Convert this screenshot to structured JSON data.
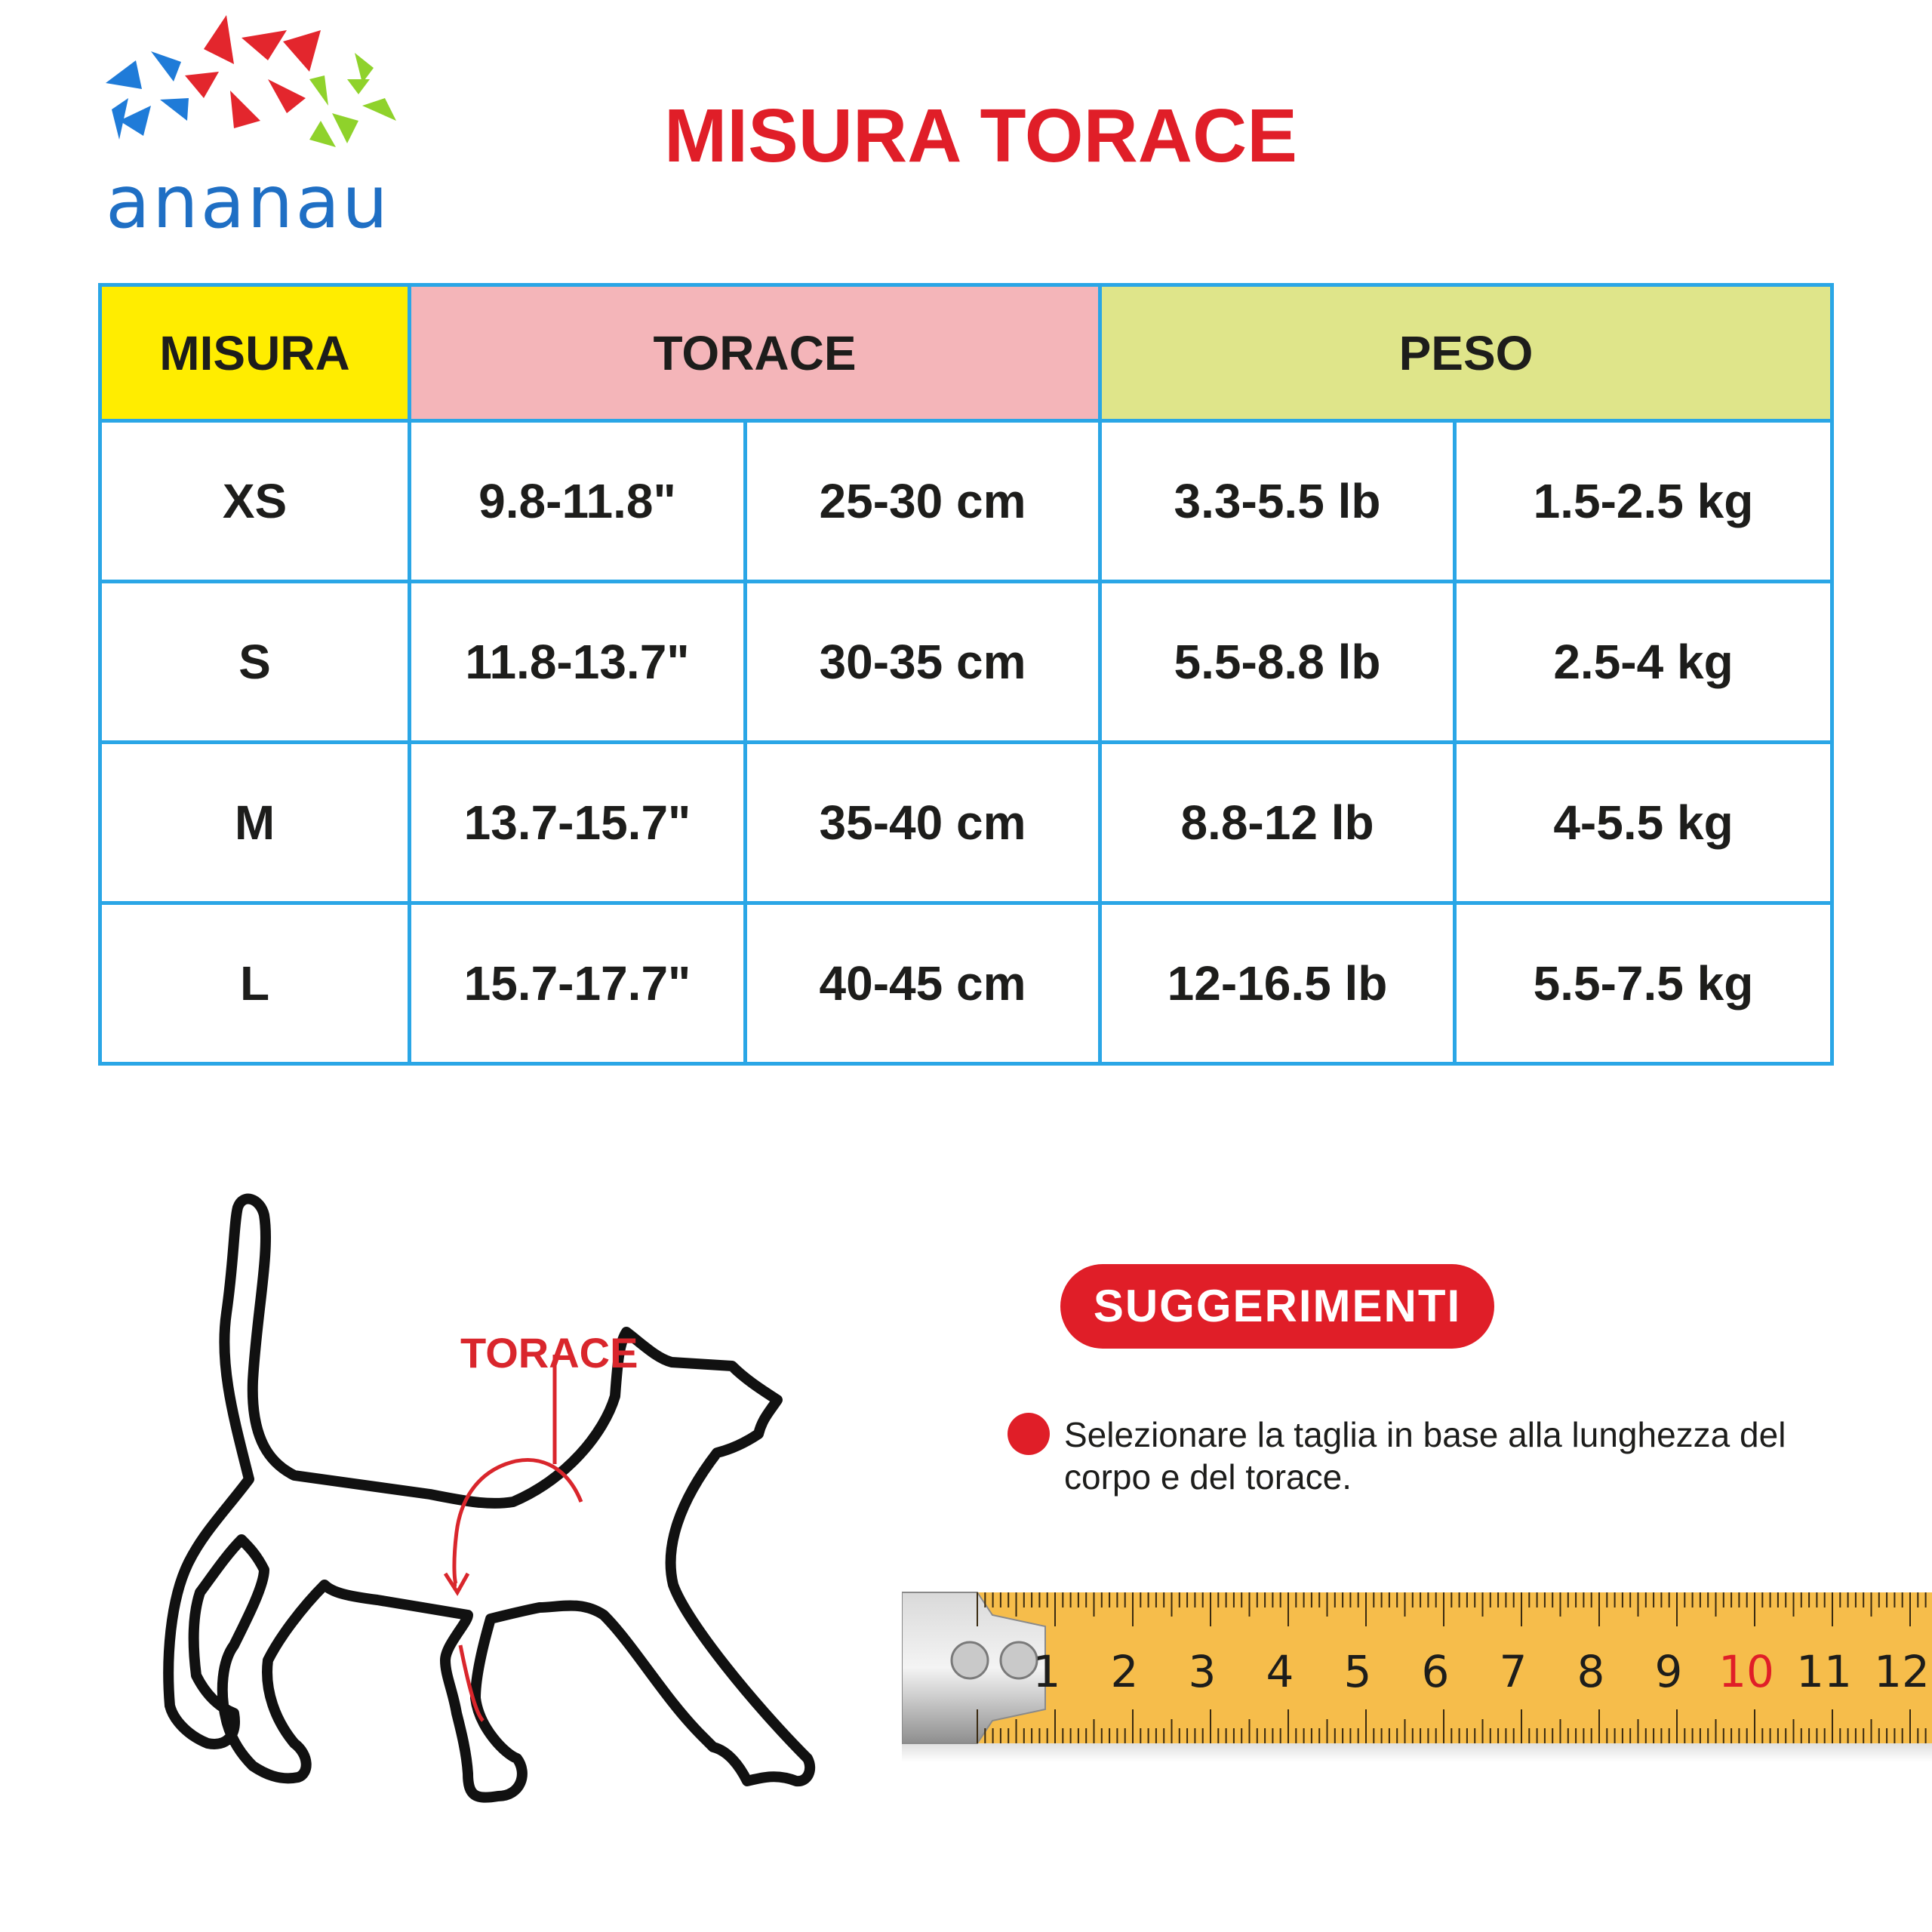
{
  "brand": {
    "name": "ananau",
    "star_colors": [
      "#1f7bd8",
      "#e3262d",
      "#8fd22b"
    ]
  },
  "title": "MISURA TORACE",
  "size_table": {
    "headers": {
      "size": "MISURA",
      "chest": "TORACE",
      "weight": "PESO"
    },
    "rows": [
      {
        "size": "XS",
        "chest_in": "9.8-11.8\"",
        "chest_cm": "25-30 cm",
        "weight_lb": "3.3-5.5 lb",
        "weight_kg": "1.5-2.5 kg"
      },
      {
        "size": "S",
        "chest_in": "11.8-13.7\"",
        "chest_cm": "30-35 cm",
        "weight_lb": "5.5-8.8 lb",
        "weight_kg": "2.5-4 kg"
      },
      {
        "size": "M",
        "chest_in": "13.7-15.7\"",
        "chest_cm": "35-40 cm",
        "weight_lb": "8.8-12 lb",
        "weight_kg": "4-5.5 kg"
      },
      {
        "size": "L",
        "chest_in": "15.7-17.7\"",
        "chest_cm": "40-45 cm",
        "weight_lb": "12-16.5 lb",
        "weight_kg": "5.5-7.5 kg"
      }
    ],
    "colors": {
      "border": "#2aa6e6",
      "size_header": "#ffed00",
      "chest_header": "#f4b5b9",
      "weight_header": "#dfe58a"
    }
  },
  "illustration": {
    "label": "TORACE",
    "icon": "cat-outline-icon"
  },
  "tips": {
    "heading": "SUGGERIMENTI",
    "items": [
      "Selezionare la taglia in base alla lunghezza del corpo e del torace."
    ]
  },
  "tape_measure": {
    "numbers": [
      "1",
      "2",
      "3",
      "4",
      "5",
      "6",
      "7",
      "8",
      "9",
      "10",
      "11",
      "12"
    ],
    "highlight": "10",
    "highlight_color": "#e01e28",
    "tape_color": "#f6bd4b"
  }
}
